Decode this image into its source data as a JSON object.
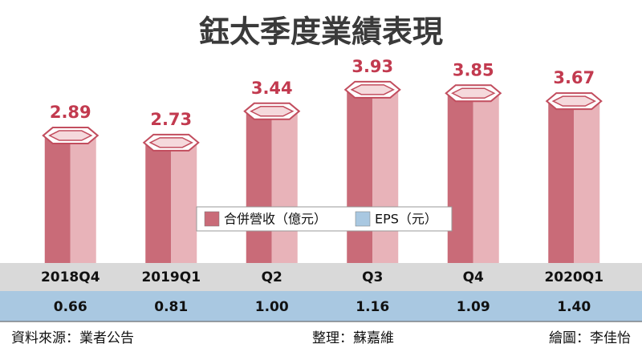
{
  "chart_data": {
    "type": "bar",
    "title": "鈺太季度業績表現",
    "categories": [
      "2018Q4",
      "2019Q1",
      "Q2",
      "Q3",
      "Q4",
      "2020Q1"
    ],
    "series": [
      {
        "name": "合併營收（億元）",
        "color": "#c96b78",
        "values": [
          2.89,
          2.73,
          3.44,
          3.93,
          3.85,
          3.67
        ]
      },
      {
        "name": "EPS（元）",
        "color": "#a9c8e1",
        "values": [
          0.66,
          0.81,
          1.0,
          1.16,
          1.09,
          1.4
        ],
        "value_labels": [
          "0.66",
          "0.81",
          "1.00",
          "1.16",
          "1.09",
          "1.40"
        ]
      }
    ],
    "legend": "center"
  },
  "footer": {
    "source": "資料來源：業者公告",
    "editor": "整理：蘇嘉維",
    "artist": "繪圖：李佳怡"
  }
}
